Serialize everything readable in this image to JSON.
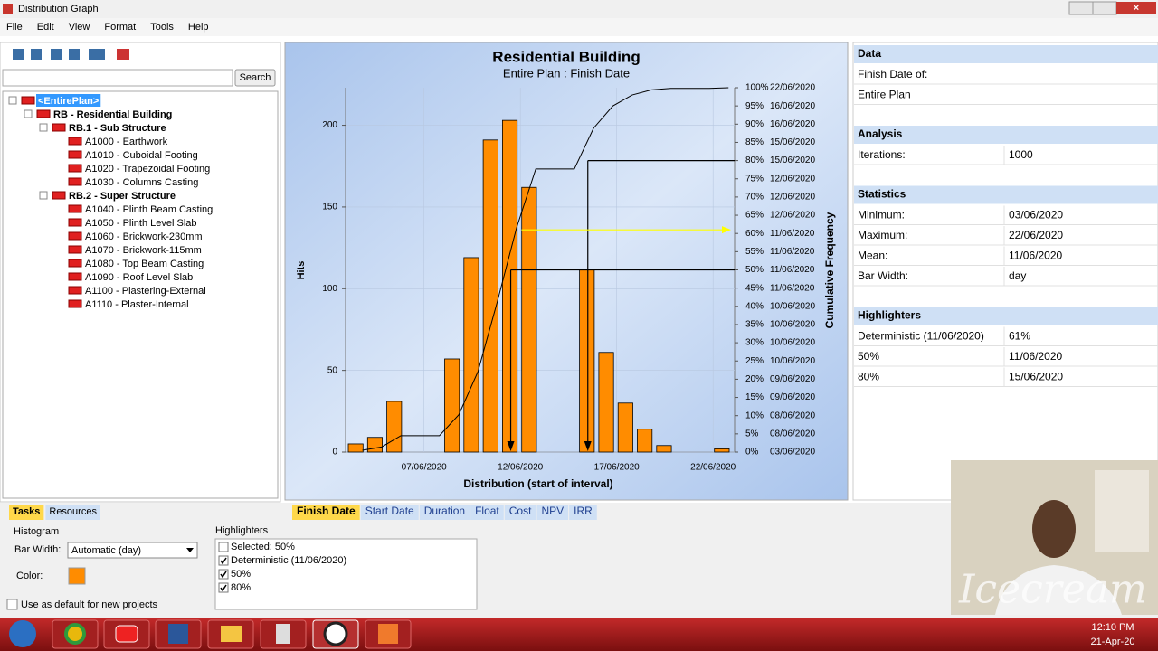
{
  "window": {
    "title": "Distribution Graph"
  },
  "menu": [
    "File",
    "Edit",
    "View",
    "Format",
    "Tools",
    "Help"
  ],
  "search_button": "Search",
  "tree": [
    {
      "label": "<EntirePlan>",
      "level": 0
    },
    {
      "label": "RB - Residential Building",
      "level": 1
    },
    {
      "label": "RB.1 - Sub Structure",
      "level": 2
    },
    {
      "label": "A1000 - Earthwork",
      "level": 3
    },
    {
      "label": "A1010 - Cuboidal Footing",
      "level": 3
    },
    {
      "label": "A1020 - Trapezoidal Footing",
      "level": 3
    },
    {
      "label": "A1030 - Columns Casting",
      "level": 3
    },
    {
      "label": "RB.2 - Super Structure",
      "level": 2
    },
    {
      "label": "A1040 - Plinth Beam Casting",
      "level": 3
    },
    {
      "label": "A1050 - Plinth Level Slab",
      "level": 3
    },
    {
      "label": "A1060 - Brickwork-230mm",
      "level": 3
    },
    {
      "label": "A1070 - Brickwork-115mm",
      "level": 3
    },
    {
      "label": "A1080 - Top Beam Casting",
      "level": 3
    },
    {
      "label": "A1090 - Roof Level Slab",
      "level": 3
    },
    {
      "label": "A1100 - Plastering-External",
      "level": 3
    },
    {
      "label": "A1110 - Plaster-Internal",
      "level": 3
    }
  ],
  "left_tabs": [
    "Tasks",
    "Resources"
  ],
  "chart_tabs": [
    "Finish Date",
    "Start Date",
    "Duration",
    "Float",
    "Cost",
    "NPV",
    "IRR"
  ],
  "histogram_settings": {
    "title": "Histogram",
    "bar_width_label": "Bar Width:",
    "bar_width": "Automatic (day)",
    "color_label": "Color:",
    "color": "#ff8c00",
    "default_label": "Use as default for new projects"
  },
  "highlighters": {
    "title": "Highlighters",
    "items": [
      {
        "label": "Selected: 50%",
        "checked": false
      },
      {
        "label": "Deterministic (11/06/2020)",
        "checked": true
      },
      {
        "label": "50%",
        "checked": true
      },
      {
        "label": "80%",
        "checked": true
      }
    ]
  },
  "side_panel": [
    {
      "title": "Data",
      "rows": [
        [
          "Finish Date of:"
        ],
        [
          "Entire Plan"
        ]
      ]
    },
    {
      "title": "Analysis",
      "rows": [
        [
          "Iterations:",
          "1000"
        ]
      ]
    },
    {
      "title": "Statistics",
      "rows": [
        [
          "Minimum:",
          "03/06/2020"
        ],
        [
          "Maximum:",
          "22/06/2020"
        ],
        [
          "Mean:",
          "11/06/2020"
        ],
        [
          "Bar Width:",
          "day"
        ]
      ]
    },
    {
      "title": "Highlighters",
      "rows": [
        [
          "Deterministic (11/06/2020)",
          "61%"
        ],
        [
          "50%",
          "11/06/2020"
        ],
        [
          "80%",
          "15/06/2020"
        ]
      ]
    }
  ],
  "watermark": "Icecream",
  "taskbar": {
    "time": "12:10 PM",
    "date": "21-Apr-20"
  },
  "chart_data": {
    "type": "bar",
    "title": "Residential Building",
    "subtitle": "Entire Plan : Finish Date",
    "x_label": "Distribution (start of interval)",
    "y_label": "Hits",
    "y2_label": "Cumulative Frequency",
    "x": [
      "03/06/2020",
      "04/06/2020",
      "05/06/2020",
      "06/06/2020",
      "07/06/2020",
      "08/06/2020",
      "09/06/2020",
      "10/06/2020",
      "11/06/2020",
      "12/06/2020",
      "13/06/2020",
      "14/06/2020",
      "15/06/2020",
      "16/06/2020",
      "17/06/2020",
      "18/06/2020",
      "19/06/2020",
      "20/06/2020",
      "21/06/2020",
      "22/06/2020"
    ],
    "xticks": [
      "07/06/2020",
      "12/06/2020",
      "17/06/2020",
      "22/06/2020"
    ],
    "series": [
      {
        "name": "Hits",
        "color": "#ff8c00",
        "values": [
          5,
          9,
          31,
          0,
          0,
          57,
          119,
          191,
          203,
          162,
          0,
          0,
          112,
          61,
          30,
          14,
          4,
          0,
          0,
          2
        ]
      },
      {
        "name": "Cumulative Frequency",
        "color": "#000000",
        "axis": "y2",
        "values": [
          0.5,
          1.4,
          4.5,
          4.5,
          4.5,
          10.2,
          22.1,
          41.2,
          61.5,
          77.7,
          77.7,
          77.7,
          88.9,
          95,
          98,
          99.4,
          99.8,
          99.8,
          99.8,
          100
        ]
      }
    ],
    "ylim": [
      0,
      223
    ],
    "yticks": [
      0,
      50,
      100,
      150,
      200
    ],
    "y2lim": [
      0,
      100
    ],
    "y2ticks": [
      {
        "value": 0,
        "label": "0%"
      },
      {
        "value": 5,
        "label": "5%"
      },
      {
        "value": 10,
        "label": "10%"
      },
      {
        "value": 15,
        "label": "15%"
      },
      {
        "value": 20,
        "label": "20%"
      },
      {
        "value": 25,
        "label": "25%"
      },
      {
        "value": 30,
        "label": "30%"
      },
      {
        "value": 35,
        "label": "35%"
      },
      {
        "value": 40,
        "label": "40%"
      },
      {
        "value": 45,
        "label": "45%"
      },
      {
        "value": 50,
        "label": "50%"
      },
      {
        "value": 55,
        "label": "55%"
      },
      {
        "value": 60,
        "label": "60%"
      },
      {
        "value": 65,
        "label": "65%"
      },
      {
        "value": 70,
        "label": "70%"
      },
      {
        "value": 75,
        "label": "75%"
      },
      {
        "value": 80,
        "label": "80%"
      },
      {
        "value": 85,
        "label": "85%"
      },
      {
        "value": 90,
        "label": "90%"
      },
      {
        "value": 95,
        "label": "95%"
      },
      {
        "value": 100,
        "label": "100%"
      }
    ],
    "y2tick_dates": [
      "03/06/2020",
      "08/06/2020",
      "08/06/2020",
      "09/06/2020",
      "09/06/2020",
      "10/06/2020",
      "10/06/2020",
      "10/06/2020",
      "10/06/2020",
      "11/06/2020",
      "11/06/2020",
      "11/06/2020",
      "11/06/2020",
      "12/06/2020",
      "12/06/2020",
      "12/06/2020",
      "15/06/2020",
      "15/06/2020",
      "16/06/2020",
      "16/06/2020",
      "22/06/2020"
    ],
    "highlights": [
      {
        "y": 50,
        "x": "11/06/2020",
        "color": "#000000",
        "arrow": true
      },
      {
        "y": 80,
        "x": "15/06/2020",
        "color": "#000000",
        "arrow": true
      },
      {
        "y": 61,
        "x": "11/06/2020",
        "color": "#ffff00",
        "arrow": false
      }
    ],
    "grid": true
  }
}
